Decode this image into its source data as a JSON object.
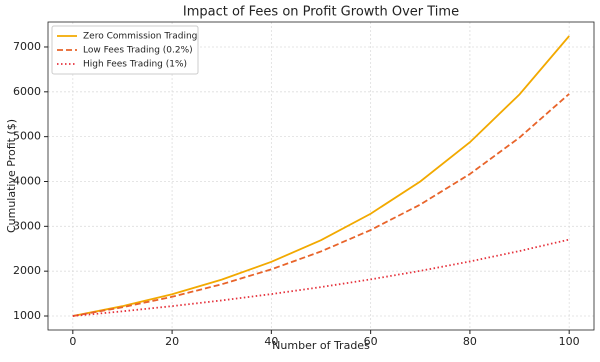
{
  "chart_data": {
    "type": "line",
    "title": "Impact of Fees on Profit Growth Over Time",
    "x_label": "Number of Trades",
    "y_label": "Cumulative Profit ($)",
    "x": [
      0,
      10,
      20,
      30,
      40,
      50,
      60,
      70,
      80,
      90,
      100
    ],
    "series": [
      {
        "name": "Zero Commission Trading",
        "color": "#f2a900",
        "dash": "solid",
        "values": [
          1000,
          1219,
          1486,
          1811,
          2208,
          2692,
          3281,
          4000,
          4875,
          5943,
          7245
        ]
      },
      {
        "name": "Low Fees Trading (0.2%)",
        "color": "#e8642a",
        "dash": "dashed",
        "values": [
          1000,
          1195,
          1429,
          1708,
          2041,
          2440,
          2917,
          3486,
          4167,
          4981,
          5954
        ]
      },
      {
        "name": "High Fees Trading (1%)",
        "color": "#e5323c",
        "dash": "dotted",
        "values": [
          1000,
          1105,
          1220,
          1348,
          1489,
          1645,
          1817,
          2007,
          2217,
          2449,
          2705
        ]
      }
    ],
    "xlim": [
      -5,
      105
    ],
    "ylim": [
      688,
      7557
    ],
    "xticks": [
      0,
      20,
      40,
      60,
      80,
      100
    ],
    "yticks": [
      1000,
      2000,
      3000,
      4000,
      5000,
      6000,
      7000
    ],
    "grid": true,
    "legend": "upper left"
  }
}
